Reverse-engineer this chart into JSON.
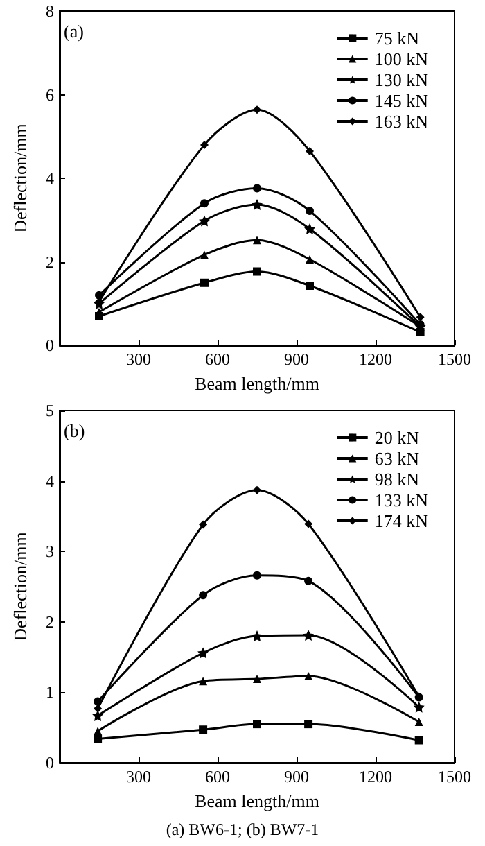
{
  "chart_data": [
    {
      "type": "line",
      "xlabel": "Beam length/mm",
      "ylabel": "Deflection/mm",
      "annotations": [
        "(a)"
      ],
      "x": [
        150,
        550,
        750,
        950,
        1370
      ],
      "xlim": [
        0,
        1500
      ],
      "xticks": [
        300,
        600,
        900,
        1200,
        1500
      ],
      "ylim": [
        0,
        8
      ],
      "yticks": [
        0,
        2,
        4,
        6,
        8
      ],
      "grid": false,
      "legend": "top right",
      "line_style": "solid",
      "series": [
        {
          "name": "75 kN",
          "color": "#000000",
          "marker": "square",
          "values": [
            0.7,
            1.5,
            1.77,
            1.43,
            0.32
          ]
        },
        {
          "name": "100 kN",
          "color": "#000000",
          "marker": "triangle",
          "values": [
            0.8,
            2.17,
            2.52,
            2.06,
            0.45
          ]
        },
        {
          "name": "130 kN",
          "color": "#000000",
          "marker": "star",
          "values": [
            1.0,
            2.98,
            3.37,
            2.79,
            0.45
          ]
        },
        {
          "name": "145 kN",
          "color": "#000000",
          "marker": "circle",
          "values": [
            1.2,
            3.4,
            3.76,
            3.22,
            0.5
          ]
        },
        {
          "name": "163 kN",
          "color": "#000000",
          "marker": "diamond",
          "values": [
            1.05,
            4.8,
            5.64,
            4.65,
            0.68
          ]
        }
      ]
    },
    {
      "type": "line",
      "xlabel": "Beam length/mm",
      "ylabel": "Deflection/mm",
      "annotations": [
        "(b)",
        "(a) BW6-1; (b) BW7-1"
      ],
      "x": [
        145,
        545,
        750,
        945,
        1365
      ],
      "xlim": [
        0,
        1500
      ],
      "xticks": [
        300,
        600,
        900,
        1200,
        1500
      ],
      "ylim": [
        0,
        5
      ],
      "yticks": [
        0,
        1,
        2,
        3,
        4,
        5
      ],
      "grid": false,
      "legend": "top right",
      "line_style": "solid",
      "series": [
        {
          "name": "20 kN",
          "color": "#000000",
          "marker": "square",
          "values": [
            0.34,
            0.47,
            0.55,
            0.55,
            0.32
          ]
        },
        {
          "name": "63 kN",
          "color": "#000000",
          "marker": "triangle",
          "values": [
            0.45,
            1.16,
            1.19,
            1.23,
            0.58
          ]
        },
        {
          "name": "98 kN",
          "color": "#000000",
          "marker": "star",
          "values": [
            0.67,
            1.56,
            1.8,
            1.81,
            0.79
          ]
        },
        {
          "name": "133 kN",
          "color": "#000000",
          "marker": "circle",
          "values": [
            0.87,
            2.38,
            2.66,
            2.58,
            0.93
          ]
        },
        {
          "name": "174 kN",
          "color": "#000000",
          "marker": "diamond",
          "values": [
            0.77,
            3.38,
            3.87,
            3.39,
            0.94
          ]
        }
      ]
    }
  ]
}
